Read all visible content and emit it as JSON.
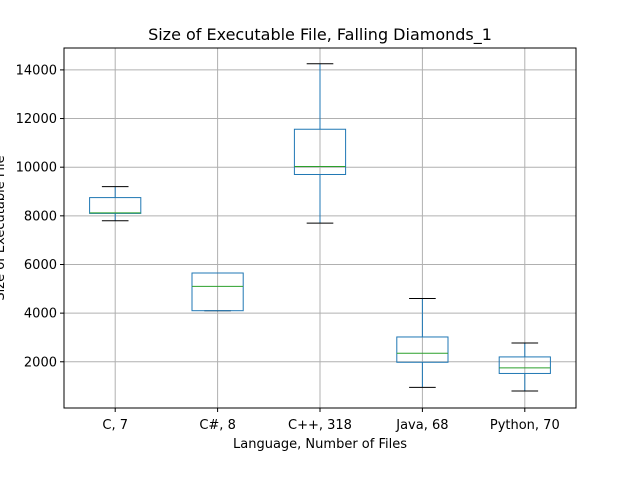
{
  "chart_data": {
    "type": "box",
    "title": "Size of Executable File, Falling Diamonds_1",
    "xlabel": "Language, Number of Files",
    "ylabel": "Size of Executable File",
    "ylim": [
      100,
      14900
    ],
    "yticks": [
      2000,
      4000,
      6000,
      8000,
      10000,
      12000,
      14000
    ],
    "grid": true,
    "categories": [
      "C, 7",
      "C#, 8",
      "C++, 318",
      "Java, 68",
      "Python, 70"
    ],
    "boxes": [
      {
        "whisker_low": 7800,
        "q1": 8100,
        "median": 8120,
        "q3": 8750,
        "whisker_high": 9200
      },
      {
        "whisker_low": 4100,
        "q1": 4100,
        "median": 5100,
        "q3": 5650,
        "whisker_high": 5650
      },
      {
        "whisker_low": 7700,
        "q1": 9700,
        "median": 10030,
        "q3": 11560,
        "whisker_high": 14250
      },
      {
        "whisker_low": 950,
        "q1": 1980,
        "median": 2350,
        "q3": 3020,
        "whisker_high": 4600
      },
      {
        "whisker_low": 800,
        "q1": 1520,
        "median": 1750,
        "q3": 2200,
        "whisker_high": 2770
      }
    ],
    "colors": {
      "box": "#1f77b4",
      "median": "#2ca02c",
      "whisker_cap": "#000000",
      "grid": "#b0b0b0"
    }
  }
}
